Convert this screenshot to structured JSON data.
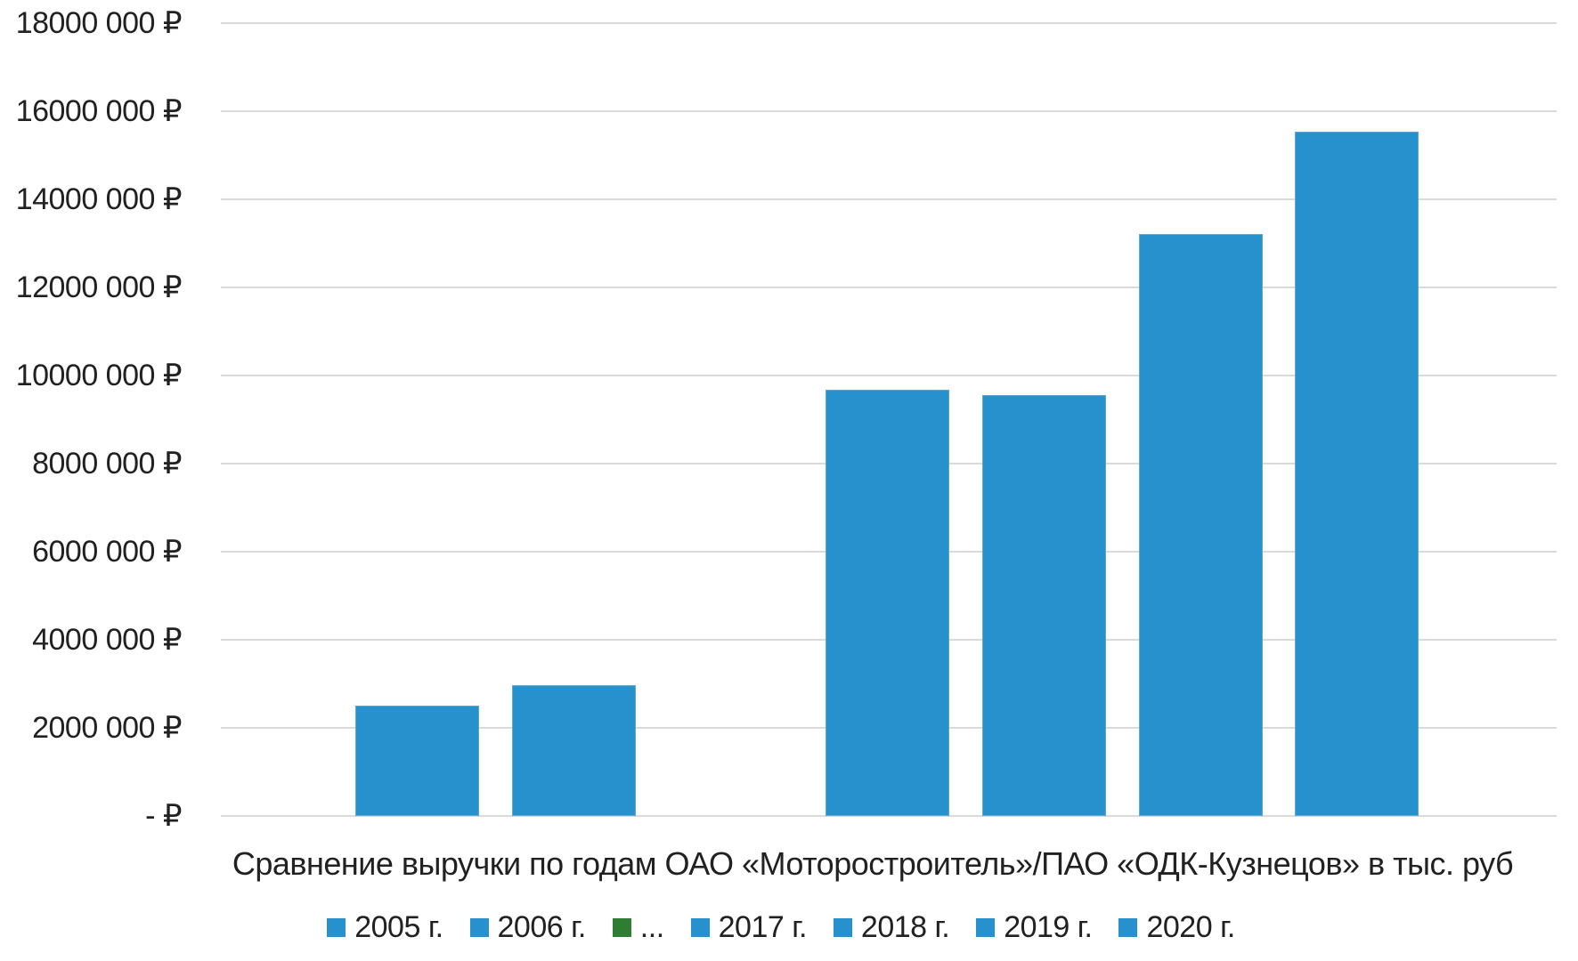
{
  "chart_data": {
    "type": "bar",
    "title": "Сравнение выручки по годам ОАО «Моторостроитель»/ПАО «ОДК-Кузнецов» в тыс. руб",
    "categories": [
      "2005 г.",
      "2006 г.",
      "...",
      "2017 г.",
      "2018 г.",
      "2019 г.",
      "2020 г."
    ],
    "series": [
      {
        "name": "2005 г.",
        "value": 2500000,
        "color": "#2791CE"
      },
      {
        "name": "2006 г.",
        "value": 2970000,
        "color": "#2791CE"
      },
      {
        "name": "...",
        "value": null,
        "color": "#2E7D32"
      },
      {
        "name": "2017 г.",
        "value": 9680000,
        "color": "#2791CE"
      },
      {
        "name": "2018 г.",
        "value": 9560000,
        "color": "#2791CE"
      },
      {
        "name": "2019 г.",
        "value": 13220000,
        "color": "#2791CE"
      },
      {
        "name": "2020 г.",
        "value": 15530000,
        "color": "#2791CE"
      }
    ],
    "ylim": [
      0,
      18000000
    ],
    "y_tick_step": 2000000,
    "y_tick_labels": [
      "18000 000 ₽",
      "16000 000 ₽",
      "14000 000 ₽",
      "12000 000 ₽",
      "10000 000 ₽",
      "8000 000 ₽",
      "6000 000 ₽",
      "4000 000 ₽",
      "2000 000 ₽",
      "- ₽"
    ],
    "grid": "horizontal",
    "legend_position": "bottom"
  },
  "colors": {
    "bar_blue": "#2791CE",
    "bar_blue_border": "#5FA8D6",
    "legend_green": "#2E7D32",
    "gridline": "#DADADA",
    "text": "#212121",
    "background": "#FFFFFF"
  }
}
